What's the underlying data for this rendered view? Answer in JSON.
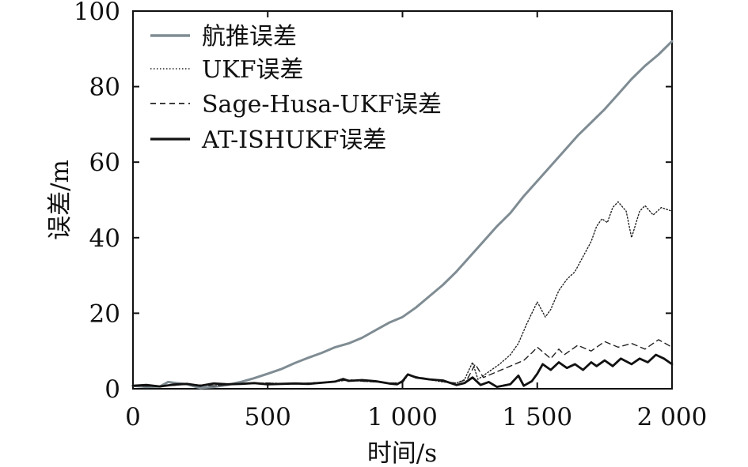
{
  "chart_data": {
    "type": "line",
    "xlabel": "时间/s",
    "ylabel": "误差/m",
    "xlim": [
      0,
      2000
    ],
    "ylim": [
      0,
      100
    ],
    "xticks": [
      0,
      500,
      1000,
      1500,
      2000
    ],
    "xtick_labels": [
      "0",
      "500",
      "1 000",
      "1 500",
      "2 000"
    ],
    "yticks": [
      0,
      20,
      40,
      60,
      80,
      100
    ],
    "ytick_labels": [
      "0",
      "20",
      "40",
      "60",
      "80",
      "100"
    ],
    "grid": false,
    "legend_position": "top-left",
    "series": [
      {
        "name": "航推误差",
        "color": "#7f8c93",
        "style": "solid",
        "x": [
          0,
          50,
          100,
          130,
          150,
          200,
          250,
          300,
          350,
          400,
          450,
          500,
          550,
          600,
          650,
          700,
          750,
          800,
          850,
          900,
          950,
          1000,
          1050,
          1100,
          1150,
          1200,
          1250,
          1300,
          1350,
          1400,
          1450,
          1500,
          1550,
          1600,
          1650,
          1700,
          1750,
          1800,
          1850,
          1900,
          1950,
          2000
        ],
        "y": [
          0.8,
          0.5,
          0.6,
          1.8,
          1.6,
          1.2,
          0.2,
          0.5,
          1.0,
          1.8,
          2.8,
          4.0,
          5.2,
          6.8,
          8.2,
          9.5,
          11.0,
          12.0,
          13.5,
          15.5,
          17.5,
          19.0,
          21.5,
          24.5,
          27.5,
          31.0,
          35.0,
          39.0,
          43.0,
          46.5,
          51.0,
          55.0,
          59.0,
          63.0,
          67.0,
          70.5,
          74.0,
          78.0,
          82.0,
          85.5,
          88.5,
          92.0
        ]
      },
      {
        "name": "UKF误差",
        "color": "#222222",
        "style": "dotted",
        "x": [
          0,
          100,
          200,
          300,
          400,
          500,
          600,
          700,
          750,
          800,
          850,
          900,
          950,
          1000,
          1020,
          1050,
          1100,
          1150,
          1200,
          1230,
          1260,
          1280,
          1300,
          1330,
          1360,
          1400,
          1430,
          1460,
          1480,
          1500,
          1530,
          1550,
          1580,
          1610,
          1640,
          1670,
          1700,
          1720,
          1740,
          1760,
          1780,
          1800,
          1830,
          1850,
          1880,
          1900,
          1930,
          1960,
          2000
        ],
        "y": [
          0.8,
          0.6,
          1.2,
          0.8,
          1.3,
          1.5,
          1.3,
          1.7,
          1.9,
          2.3,
          2.0,
          1.8,
          1.5,
          1.6,
          3.6,
          3.0,
          2.4,
          1.8,
          1.5,
          2.4,
          7.0,
          2.5,
          3.5,
          5.0,
          6.5,
          9.0,
          12.0,
          17.0,
          20.0,
          23.0,
          19.0,
          21.0,
          26.0,
          29.0,
          31.0,
          35.0,
          39.0,
          43.0,
          45.0,
          44.0,
          48.0,
          49.5,
          47.0,
          40.0,
          47.0,
          48.5,
          46.0,
          48.0,
          47.0
        ]
      },
      {
        "name": "Sage-Husa-UKF误差",
        "color": "#222222",
        "style": "dashed",
        "x": [
          0,
          100,
          200,
          300,
          400,
          500,
          600,
          700,
          750,
          800,
          850,
          900,
          950,
          1000,
          1020,
          1050,
          1100,
          1150,
          1200,
          1240,
          1270,
          1300,
          1350,
          1400,
          1450,
          1480,
          1500,
          1550,
          1580,
          1600,
          1650,
          1700,
          1750,
          1800,
          1850,
          1900,
          1950,
          2000
        ],
        "y": [
          0.8,
          0.6,
          1.2,
          0.8,
          1.3,
          1.5,
          1.3,
          1.7,
          1.9,
          2.4,
          2.0,
          1.8,
          1.5,
          1.6,
          3.8,
          3.2,
          2.6,
          1.9,
          1.5,
          2.5,
          6.5,
          3.0,
          4.5,
          6.0,
          7.5,
          9.5,
          11.0,
          8.0,
          10.5,
          9.0,
          11.5,
          10.0,
          12.5,
          11.0,
          12.0,
          10.5,
          13.0,
          11.0
        ]
      },
      {
        "name": "AT-ISHUKF误差",
        "color": "#111111",
        "style": "solid",
        "x": [
          0,
          50,
          100,
          150,
          200,
          250,
          300,
          350,
          400,
          450,
          500,
          550,
          600,
          650,
          700,
          750,
          780,
          800,
          850,
          900,
          950,
          980,
          1000,
          1020,
          1050,
          1100,
          1150,
          1200,
          1230,
          1260,
          1290,
          1320,
          1350,
          1400,
          1430,
          1450,
          1480,
          1500,
          1520,
          1550,
          1580,
          1610,
          1640,
          1670,
          1700,
          1720,
          1750,
          1780,
          1810,
          1850,
          1880,
          1910,
          1940,
          1970,
          2000
        ],
        "y": [
          0.8,
          1.0,
          0.6,
          1.1,
          1.3,
          0.8,
          1.4,
          1.2,
          1.3,
          1.5,
          1.2,
          1.3,
          1.4,
          1.3,
          1.6,
          1.9,
          2.6,
          2.1,
          2.3,
          2.0,
          1.4,
          1.2,
          2.0,
          3.8,
          3.0,
          2.5,
          2.2,
          1.0,
          1.5,
          3.0,
          1.0,
          1.8,
          0.5,
          1.2,
          3.5,
          0.8,
          2.0,
          4.0,
          6.5,
          5.0,
          7.0,
          5.5,
          6.5,
          5.0,
          7.0,
          6.0,
          7.5,
          6.0,
          8.0,
          6.5,
          8.0,
          7.0,
          9.0,
          8.0,
          6.5
        ]
      }
    ]
  }
}
